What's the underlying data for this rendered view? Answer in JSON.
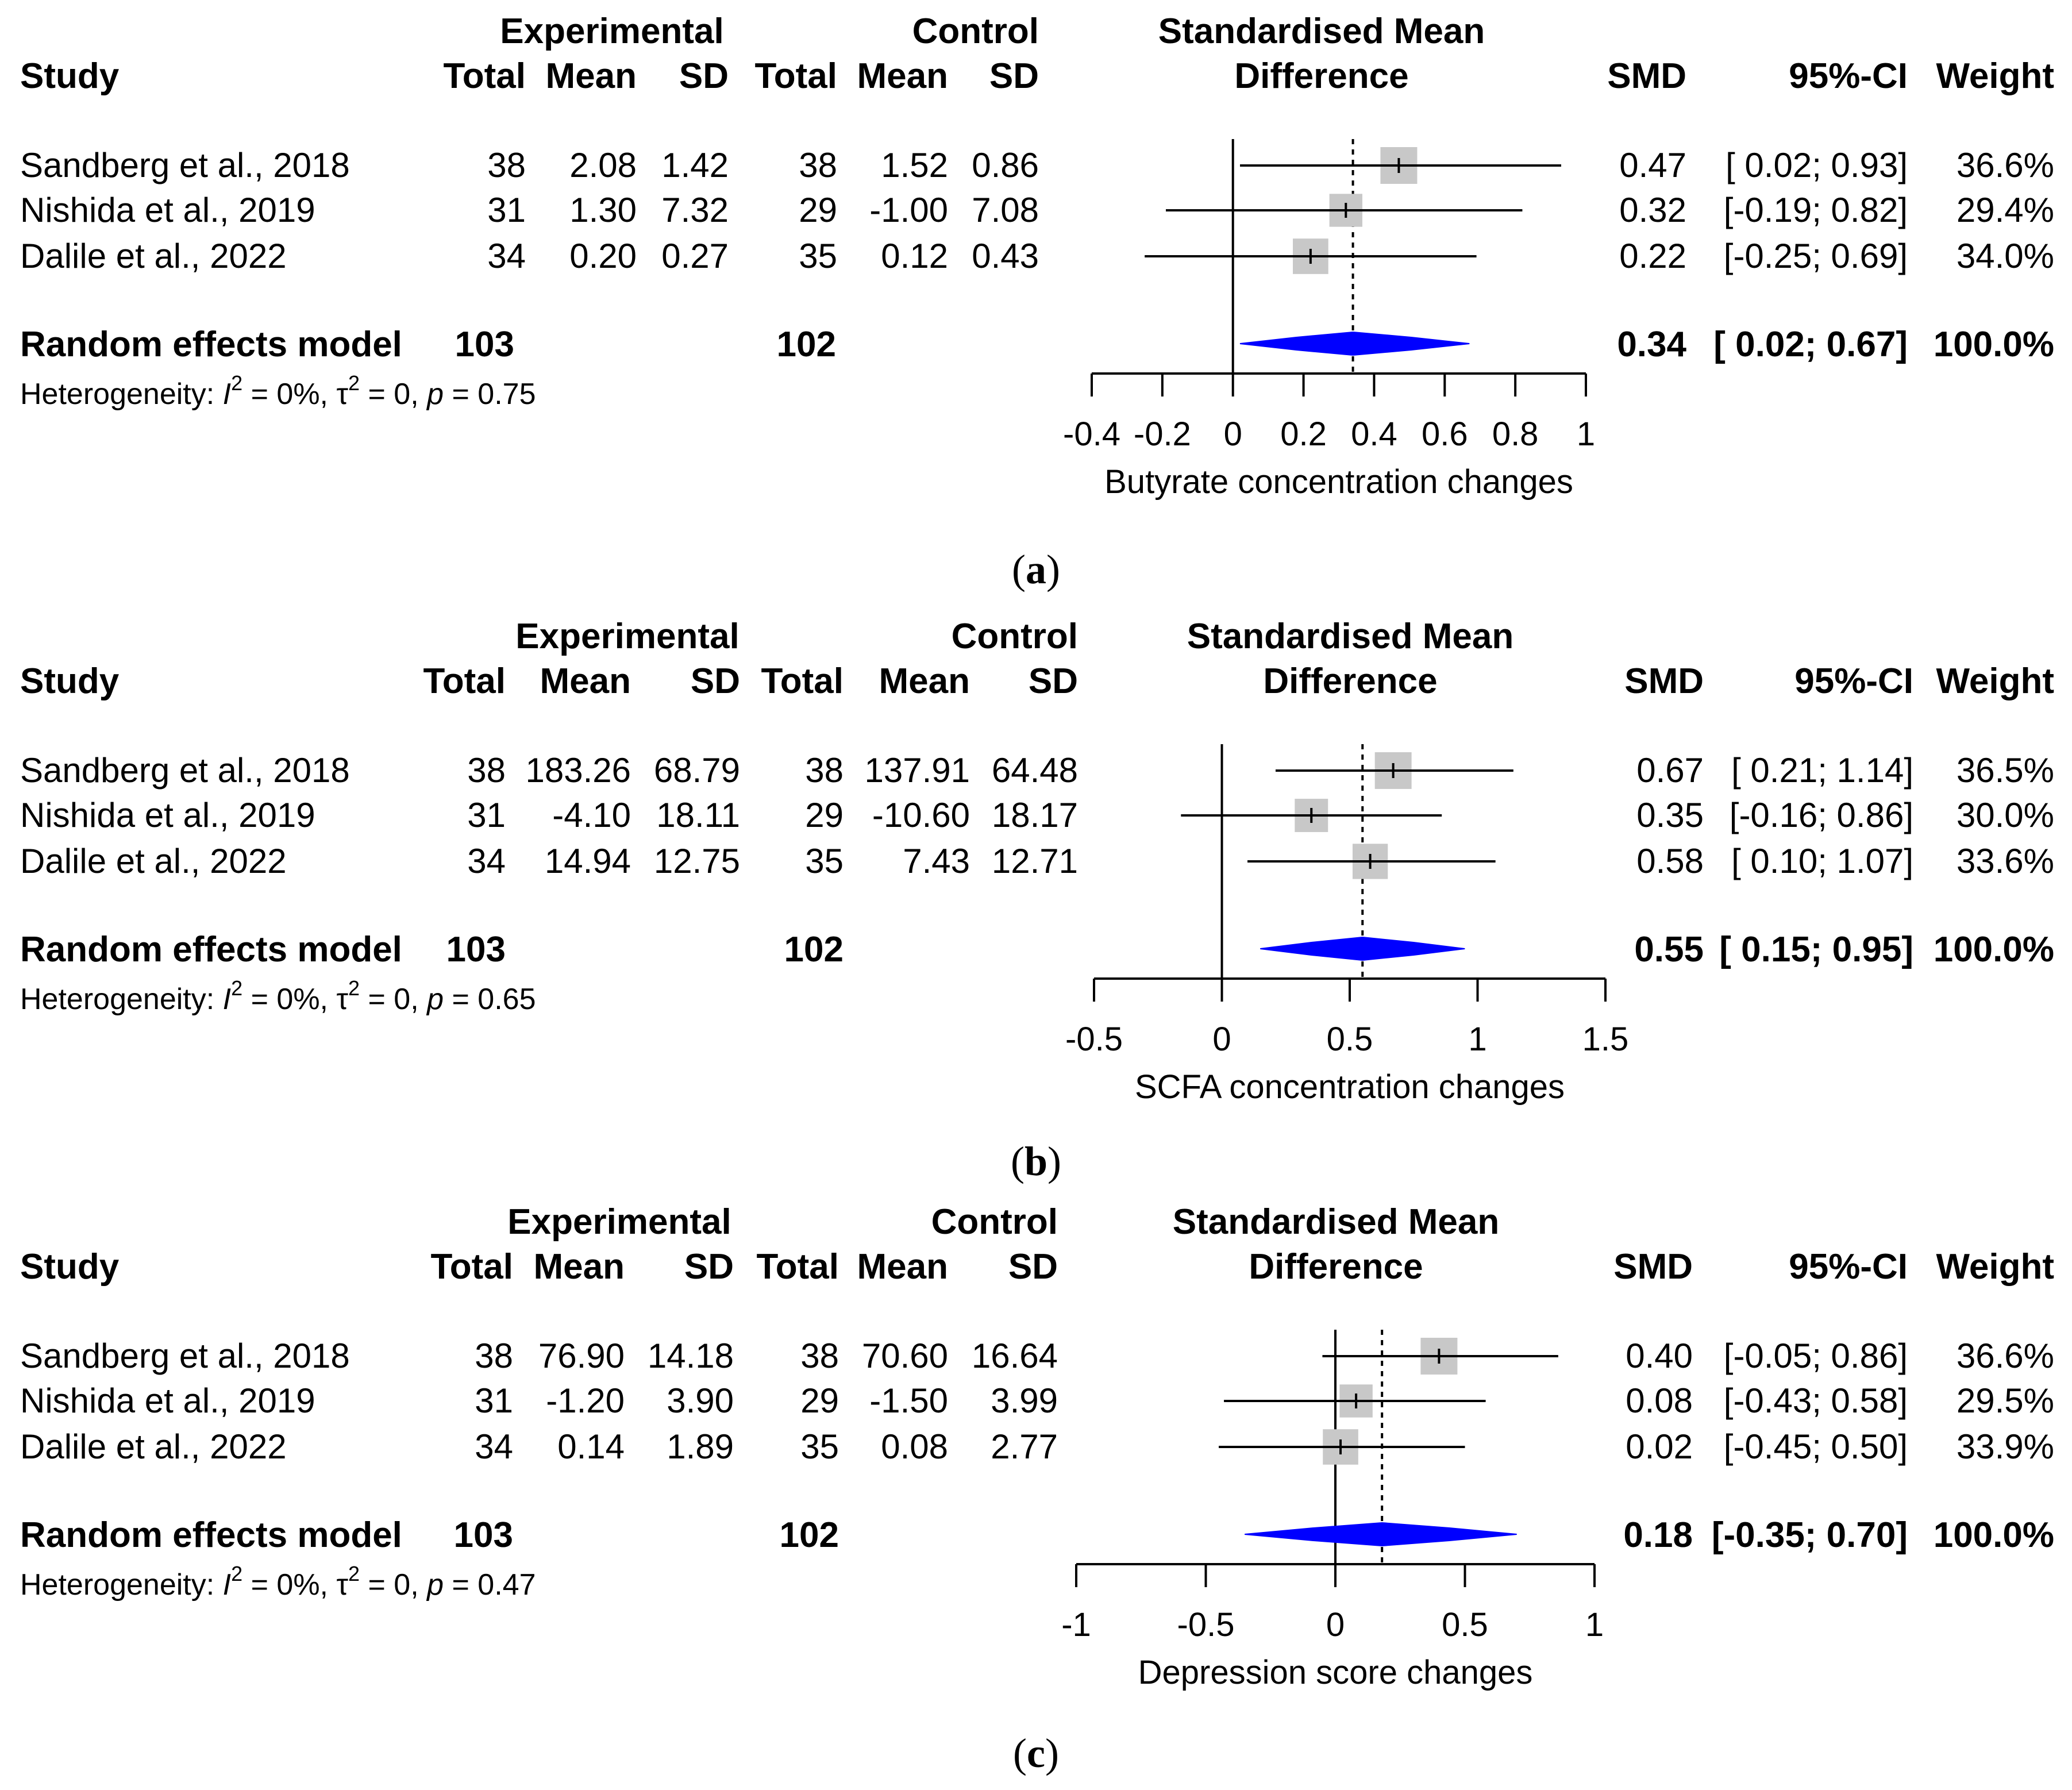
{
  "colors": {
    "box": "#c8c8c8",
    "diamond": "#0000ff",
    "line": "#000000"
  },
  "chart_data": [
    {
      "type": "forest",
      "panel_label": "a",
      "headers": {
        "study": "Study",
        "experimental": "Experimental",
        "control": "Control",
        "total": "Total",
        "mean": "Mean",
        "sd": "SD",
        "smd_title_1": "Standardised Mean",
        "smd_title_2": "Difference",
        "smd": "SMD",
        "ci": "95%-CI",
        "weight": "Weight"
      },
      "studies": [
        {
          "name": "Sandberg et al., 2018",
          "exp_total": "38",
          "exp_mean": "2.08",
          "exp_sd": "1.42",
          "ctrl_total": "38",
          "ctrl_mean": "1.52",
          "ctrl_sd": "0.86",
          "smd_text": "0.47",
          "ci_text": "[ 0.02; 0.93]",
          "weight_text": "36.6%",
          "smd": 0.47,
          "lower": 0.02,
          "upper": 0.93,
          "weight": 36.6
        },
        {
          "name": "Nishida et al., 2019",
          "exp_total": "31",
          "exp_mean": "1.30",
          "exp_sd": "7.32",
          "ctrl_total": "29",
          "ctrl_mean": "-1.00",
          "ctrl_sd": "7.08",
          "smd_text": "0.32",
          "ci_text": "[-0.19; 0.82]",
          "weight_text": "29.4%",
          "smd": 0.32,
          "lower": -0.19,
          "upper": 0.82,
          "weight": 29.4
        },
        {
          "name": "Dalile et al., 2022",
          "exp_total": "34",
          "exp_mean": "0.20",
          "exp_sd": "0.27",
          "ctrl_total": "35",
          "ctrl_mean": "0.12",
          "ctrl_sd": "0.43",
          "smd_text": "0.22",
          "ci_text": "[-0.25; 0.69]",
          "weight_text": "34.0%",
          "smd": 0.22,
          "lower": -0.25,
          "upper": 0.69,
          "weight": 34.0
        }
      ],
      "pooled": {
        "label": "Random effects model",
        "exp_total": "103",
        "ctrl_total": "102",
        "smd_text": "0.34",
        "ci_text": "[ 0.02; 0.67]",
        "weight_text": "100.0%",
        "smd": 0.34,
        "lower": 0.02,
        "upper": 0.67,
        "pred_lower": 0.01,
        "pred_upper": 0.66
      },
      "heterogeneity": {
        "prefix": "Heterogeneity: ",
        "i2_symbol": "I",
        "sq": "2",
        "i2_value": " = 0%, ",
        "tau_symbol": "τ",
        "tau_value": " = 0, ",
        "p_symbol": "p",
        "p_value": " = 0.75"
      },
      "xaxis": {
        "label": "Butyrate concentration changes",
        "range": [
          -0.4,
          1
        ],
        "ticks": [
          -0.4,
          -0.2,
          0,
          0.2,
          0.4,
          0.6,
          0.8,
          1
        ],
        "tick_labels": [
          "-0.4",
          "-0.2",
          "0",
          "0.2",
          "0.4",
          "0.6",
          "0.8",
          "1"
        ]
      }
    },
    {
      "type": "forest",
      "panel_label": "b",
      "headers": {
        "study": "Study",
        "experimental": "Experimental",
        "control": "Control",
        "total": "Total",
        "mean": "Mean",
        "sd": "SD",
        "smd_title_1": "Standardised Mean",
        "smd_title_2": "Difference",
        "smd": "SMD",
        "ci": "95%-CI",
        "weight": "Weight"
      },
      "studies": [
        {
          "name": "Sandberg et al., 2018",
          "exp_total": "38",
          "exp_mean": "183.26",
          "exp_sd": "68.79",
          "ctrl_total": "38",
          "ctrl_mean": "137.91",
          "ctrl_sd": "64.48",
          "smd_text": "0.67",
          "ci_text": "[ 0.21; 1.14]",
          "weight_text": "36.5%",
          "smd": 0.67,
          "lower": 0.21,
          "upper": 1.14,
          "weight": 36.5
        },
        {
          "name": "Nishida et al., 2019",
          "exp_total": "31",
          "exp_mean": "-4.10",
          "exp_sd": "18.11",
          "ctrl_total": "29",
          "ctrl_mean": "-10.60",
          "ctrl_sd": "18.17",
          "smd_text": "0.35",
          "ci_text": "[-0.16; 0.86]",
          "weight_text": "30.0%",
          "smd": 0.35,
          "lower": -0.16,
          "upper": 0.86,
          "weight": 30.0
        },
        {
          "name": "Dalile et al., 2022",
          "exp_total": "34",
          "exp_mean": "14.94",
          "exp_sd": "12.75",
          "ctrl_total": "35",
          "ctrl_mean": "7.43",
          "ctrl_sd": "12.71",
          "smd_text": "0.58",
          "ci_text": "[ 0.10; 1.07]",
          "weight_text": "33.6%",
          "smd": 0.58,
          "lower": 0.1,
          "upper": 1.07,
          "weight": 33.6
        }
      ],
      "pooled": {
        "label": "Random effects model",
        "exp_total": "103",
        "ctrl_total": "102",
        "smd_text": "0.55",
        "ci_text": "[ 0.15; 0.95]",
        "weight_text": "100.0%",
        "smd": 0.55,
        "lower": 0.15,
        "upper": 0.95,
        "pred_lower": 0.13,
        "pred_upper": 0.94
      },
      "heterogeneity": {
        "prefix": "Heterogeneity: ",
        "i2_symbol": "I",
        "sq": "2",
        "i2_value": " = 0%, ",
        "tau_symbol": "τ",
        "tau_value": " = 0, ",
        "p_symbol": "p",
        "p_value": " = 0.65"
      },
      "xaxis": {
        "label": "SCFA concentration changes",
        "range": [
          -0.5,
          1.5
        ],
        "ticks": [
          -0.5,
          0,
          0.5,
          1,
          1.5
        ],
        "tick_labels": [
          "-0.5",
          "0",
          "0.5",
          "1",
          "1.5"
        ]
      }
    },
    {
      "type": "forest",
      "panel_label": "c",
      "headers": {
        "study": "Study",
        "experimental": "Experimental",
        "control": "Control",
        "total": "Total",
        "mean": "Mean",
        "sd": "SD",
        "smd_title_1": "Standardised Mean",
        "smd_title_2": "Difference",
        "smd": "SMD",
        "ci": "95%-CI",
        "weight": "Weight"
      },
      "studies": [
        {
          "name": "Sandberg et al., 2018",
          "exp_total": "38",
          "exp_mean": "76.90",
          "exp_sd": "14.18",
          "ctrl_total": "38",
          "ctrl_mean": "70.60",
          "ctrl_sd": "16.64",
          "smd_text": "0.40",
          "ci_text": "[-0.05; 0.86]",
          "weight_text": "36.6%",
          "smd": 0.4,
          "lower": -0.05,
          "upper": 0.86,
          "weight": 36.6
        },
        {
          "name": "Nishida et al., 2019",
          "exp_total": "31",
          "exp_mean": "-1.20",
          "exp_sd": "3.90",
          "ctrl_total": "29",
          "ctrl_mean": "-1.50",
          "ctrl_sd": "3.99",
          "smd_text": "0.08",
          "ci_text": "[-0.43; 0.58]",
          "weight_text": "29.5%",
          "smd": 0.08,
          "lower": -0.43,
          "upper": 0.58,
          "weight": 29.5
        },
        {
          "name": "Dalile et al., 2022",
          "exp_total": "34",
          "exp_mean": "0.14",
          "exp_sd": "1.89",
          "ctrl_total": "35",
          "ctrl_mean": "0.08",
          "ctrl_sd": "2.77",
          "smd_text": "0.02",
          "ci_text": "[-0.45; 0.50]",
          "weight_text": "33.9%",
          "smd": 0.02,
          "lower": -0.45,
          "upper": 0.5,
          "weight": 33.9
        }
      ],
      "pooled": {
        "label": "Random effects model",
        "exp_total": "103",
        "ctrl_total": "102",
        "smd_text": "0.18",
        "ci_text": "[-0.35; 0.70]",
        "weight_text": "100.0%",
        "smd": 0.18,
        "lower": -0.35,
        "upper": 0.7,
        "pred_lower": -0.32,
        "pred_upper": 0.66
      },
      "heterogeneity": {
        "prefix": "Heterogeneity: ",
        "i2_symbol": "I",
        "sq": "2",
        "i2_value": " = 0%, ",
        "tau_symbol": "τ",
        "tau_value": " = 0, ",
        "p_symbol": "p",
        "p_value": " = 0.47"
      },
      "xaxis": {
        "label": "Depression score changes",
        "range": [
          -1,
          1
        ],
        "ticks": [
          -1,
          -0.5,
          0,
          0.5,
          1
        ],
        "tick_labels": [
          "-1",
          "-0.5",
          "0",
          "0.5",
          "1"
        ]
      }
    }
  ]
}
